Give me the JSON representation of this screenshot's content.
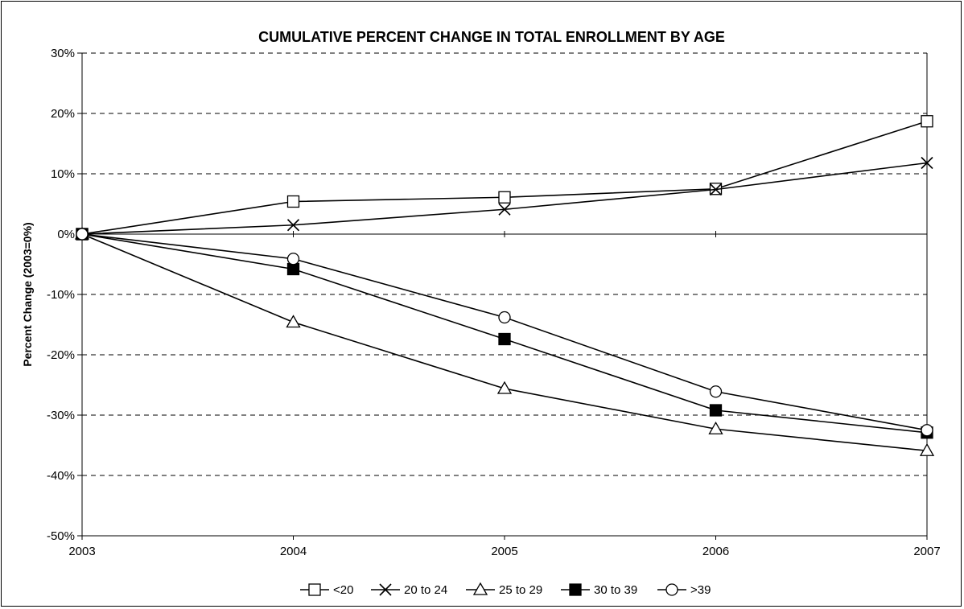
{
  "chart_data": {
    "type": "line",
    "title": "CUMULATIVE PERCENT CHANGE IN TOTAL ENROLLMENT BY AGE",
    "xlabel": "",
    "ylabel": "Percent Change (2003=0%)",
    "x": [
      "2003",
      "2004",
      "2005",
      "2006",
      "2007"
    ],
    "ylim": [
      -50,
      30
    ],
    "yticks": [
      30,
      20,
      10,
      0,
      -10,
      -20,
      -30,
      -40,
      -50
    ],
    "ytick_labels": [
      "30%",
      "20%",
      "10%",
      "0%",
      "-10%",
      "-20%",
      "-30%",
      "-40%",
      "-50%"
    ],
    "grid": "horizontal dashed",
    "legend_position": "bottom",
    "series": [
      {
        "name": "<20",
        "marker": "open-square",
        "values": [
          0,
          5.4,
          6.1,
          7.5,
          18.7
        ]
      },
      {
        "name": "20 to 24",
        "marker": "x",
        "values": [
          0,
          1.5,
          4.1,
          7.4,
          11.8
        ]
      },
      {
        "name": "25 to 29",
        "marker": "open-triangle",
        "values": [
          0,
          -14.6,
          -25.6,
          -32.3,
          -35.9
        ]
      },
      {
        "name": "30 to 39",
        "marker": "filled-square",
        "values": [
          0,
          -5.8,
          -17.4,
          -29.2,
          -32.9
        ]
      },
      {
        "name": ">39",
        "marker": "open-circle",
        "values": [
          0,
          -4.1,
          -13.8,
          -26.1,
          -32.5
        ]
      }
    ],
    "colors": {
      "line": "#000000",
      "grid": "#000000",
      "background": "#ffffff"
    }
  }
}
